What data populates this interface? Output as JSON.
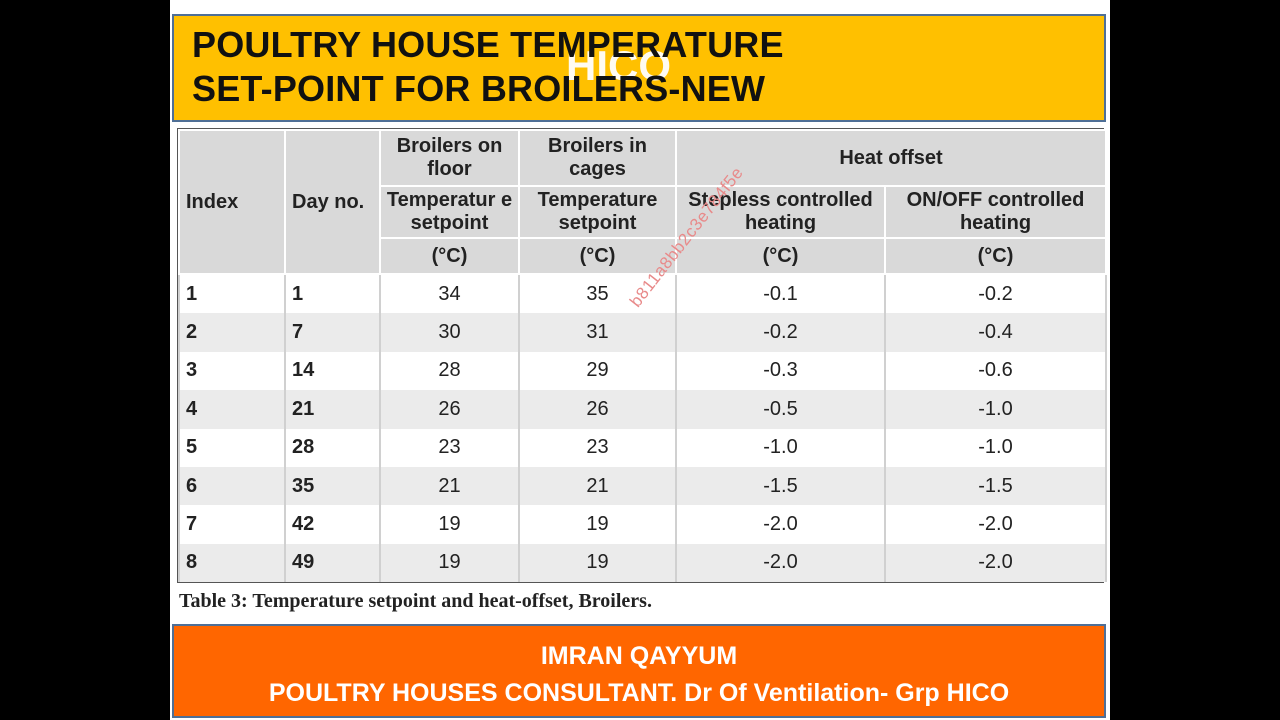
{
  "title": {
    "line1": "POULTRY HOUSE TEMPERATURE",
    "line2": "SET-POINT FOR BROILERS-NEW",
    "watermark": "HICO"
  },
  "table": {
    "headers": {
      "index": "Index",
      "day": "Day no.",
      "floor_group": "Broilers on floor",
      "floor_sub": "Temperatur e setpoint",
      "cages_group": "Broilers in cages",
      "cages_sub": "Temperature setpoint",
      "heat_group": "Heat offset",
      "stepless": "Stepless controlled heating",
      "onoff": "ON/OFF controlled heating",
      "unit": "(°C)"
    },
    "watermark": "b811a8bb2c3e784f5e",
    "rows": [
      [
        "1",
        "1",
        "34",
        "35",
        "-0.1",
        "-0.2"
      ],
      [
        "2",
        "7",
        "30",
        "31",
        "-0.2",
        "-0.4"
      ],
      [
        "3",
        "14",
        "28",
        "29",
        "-0.3",
        "-0.6"
      ],
      [
        "4",
        "21",
        "26",
        "26",
        "-0.5",
        "-1.0"
      ],
      [
        "5",
        "28",
        "23",
        "23",
        "-1.0",
        "-1.0"
      ],
      [
        "6",
        "35",
        "21",
        "21",
        "-1.5",
        "-1.5"
      ],
      [
        "7",
        "42",
        "19",
        "19",
        "-2.0",
        "-2.0"
      ],
      [
        "8",
        "49",
        "19",
        "19",
        "-2.0",
        "-2.0"
      ]
    ]
  },
  "caption": "Table 3: Temperature setpoint and heat-offset, Broilers.",
  "footer": {
    "line1": "IMRAN QAYYUM",
    "line2": "POULTRY HOUSES CONSULTANT. Dr  Of  Ventilation- Grp HICO"
  }
}
